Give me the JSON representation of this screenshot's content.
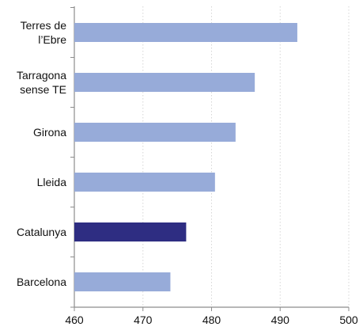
{
  "chart_data": {
    "type": "bar",
    "orientation": "horizontal",
    "categories": [
      "Terres de l’Ebre",
      "Tarragona sense TE",
      "Girona",
      "Lleida",
      "Catalunya",
      "Barcelona"
    ],
    "category_label_lines": [
      [
        "Terres de",
        "l’Ebre"
      ],
      [
        "Tarragona",
        "sense TE"
      ],
      [
        "Girona"
      ],
      [
        "Lleida"
      ],
      [
        "Catalunya"
      ],
      [
        "Barcelona"
      ]
    ],
    "values": [
      492.5,
      486.3,
      483.5,
      480.5,
      476.3,
      474.0
    ],
    "xlim": [
      460,
      500
    ],
    "x_ticks": [
      "460",
      "470",
      "480",
      "490",
      "500"
    ],
    "title": "",
    "xlabel": "",
    "ylabel": "",
    "grid": "vertical dashed",
    "legend": "none",
    "colors": {
      "default_bar": "#97ABD9",
      "highlight_bar": "#2E2D82",
      "highlight_category": "Catalunya",
      "grid": "#D6D6D6",
      "axis": "#8C8C8C"
    }
  }
}
